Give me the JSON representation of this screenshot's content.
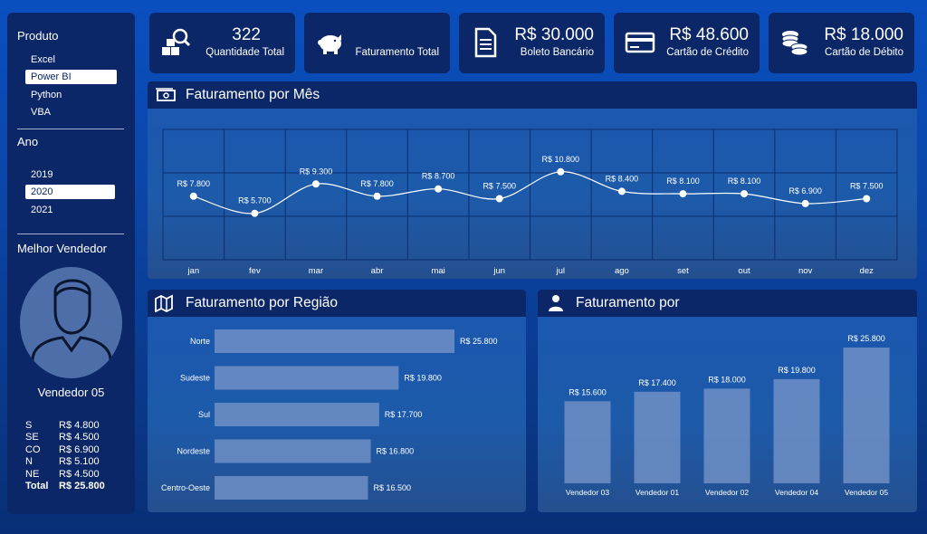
{
  "sidebar": {
    "produto_title": "Produto",
    "produtos": [
      {
        "label": "Excel",
        "selected": false
      },
      {
        "label": "Power BI",
        "selected": true
      },
      {
        "label": "Python",
        "selected": false
      },
      {
        "label": "VBA",
        "selected": false
      }
    ],
    "ano_title": "Ano",
    "anos": [
      {
        "label": "2019",
        "selected": false
      },
      {
        "label": "2020",
        "selected": true
      },
      {
        "label": "2021",
        "selected": false
      }
    ],
    "melhor_title": "Melhor Vendedor",
    "vendor_name": "Vendedor 05",
    "stats": [
      {
        "k": "S",
        "v": "R$ 4.800"
      },
      {
        "k": "SE",
        "v": "R$ 4.500"
      },
      {
        "k": "CO",
        "v": "R$ 6.900"
      },
      {
        "k": "N",
        "v": "R$ 5.100"
      },
      {
        "k": "NE",
        "v": "R$ 4.500"
      },
      {
        "k": "Total",
        "v": "R$ 25.800"
      }
    ]
  },
  "kpis": [
    {
      "value": "322",
      "label": "Quantidade Total",
      "icon": "boxes-search-icon"
    },
    {
      "value": "",
      "label": "Faturamento Total",
      "icon": "piggy-bank-icon"
    },
    {
      "value": "R$ 30.000",
      "label": "Boleto Bancário",
      "icon": "document-icon"
    },
    {
      "value": "R$ 48.600",
      "label": "Cartão de Crédito",
      "icon": "credit-card-icon"
    },
    {
      "value": "R$ 18.000",
      "label": "Cartão de Débito",
      "icon": "coins-icon"
    }
  ],
  "panels": {
    "mes_title": "Faturamento por Mês",
    "regiao_title": "Faturamento por Região",
    "vendedor_title": "Faturamento por"
  },
  "chart_data": [
    {
      "type": "line",
      "title": "Faturamento por Mês",
      "categories": [
        "jan",
        "fev",
        "mar",
        "abr",
        "mai",
        "jun",
        "jul",
        "ago",
        "set",
        "out",
        "nov",
        "dez"
      ],
      "values": [
        7800,
        5700,
        9300,
        7800,
        8700,
        7500,
        10800,
        8400,
        8100,
        8100,
        6900,
        7500
      ],
      "labels": [
        "R$ 7.800",
        "R$ 5.700",
        "R$ 9.300",
        "R$ 7.800",
        "R$ 8.700",
        "R$ 7.500",
        "R$ 10.800",
        "R$ 8.400",
        "R$ 8.100",
        "R$ 8.100",
        "R$ 6.900",
        "R$ 7.500"
      ],
      "ylim": [
        0,
        16000
      ],
      "grid": true
    },
    {
      "type": "bar",
      "orientation": "horizontal",
      "title": "Faturamento por Região",
      "categories": [
        "Norte",
        "Sudeste",
        "Sul",
        "Nordeste",
        "Centro-Oeste"
      ],
      "values": [
        25800,
        19800,
        17700,
        16800,
        16500
      ],
      "labels": [
        "R$ 25.800",
        "R$ 19.800",
        "R$ 17.700",
        "R$ 16.800",
        "R$ 16.500"
      ]
    },
    {
      "type": "bar",
      "orientation": "vertical",
      "title": "Faturamento por",
      "categories": [
        "Vendedor 03",
        "Vendedor 01",
        "Vendedor 02",
        "Vendedor 04",
        "Vendedor 05"
      ],
      "values": [
        15600,
        17400,
        18000,
        19800,
        25800
      ],
      "labels": [
        "R$ 15.600",
        "R$ 17.400",
        "R$ 18.000",
        "R$ 19.800",
        "R$ 25.800"
      ]
    }
  ]
}
